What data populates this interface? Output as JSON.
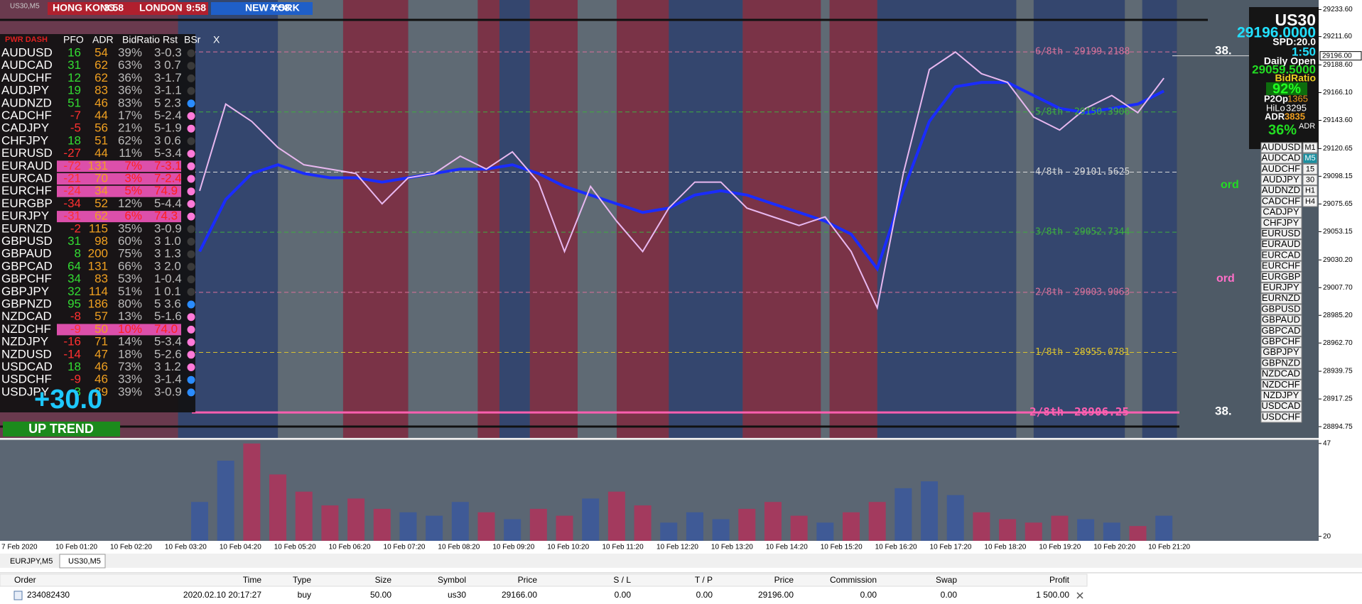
{
  "window": {
    "symbol_label": "US30,M5"
  },
  "sessions": [
    {
      "name": "HONG KONG",
      "time": "3:58"
    },
    {
      "name": "LONDON",
      "time": "9:58"
    },
    {
      "name": "NEW YORK",
      "time": "4:58"
    }
  ],
  "dashboard": {
    "title": "PWR DASH",
    "columns": [
      "PFO",
      "ADR",
      "BidRatio",
      "Rst",
      "BSr",
      "X"
    ],
    "dot_colors": [
      "#3a3a3a",
      "#3a3a3a",
      "#3a3a3a",
      "#3a3a3a",
      "#2a8cff",
      "#ff7ad9",
      "#ff7ad9",
      "#3a3a3a",
      "#ff7ad9",
      "#ff7ad9",
      "#ff7ad9",
      "#ff7ad9",
      "#ff7ad9",
      "#ff7ad9",
      "#3a3a3a",
      "#3a3a3a",
      "#3a3a3a",
      "#3a3a3a",
      "#3a3a3a",
      "#3a3a3a",
      "#2a8cff",
      "#ff7ad9",
      "#ff7ad9",
      "#ff7ad9",
      "#ff7ad9",
      "#ff7ad9",
      "#2a8cff",
      "#2a8cff",
      "#2a8cff"
    ],
    "rows": [
      [
        "AUDUSD",
        16,
        54,
        "39%",
        "3-0.3"
      ],
      [
        "AUDCAD",
        31,
        62,
        "63%",
        "3 0.7"
      ],
      [
        "AUDCHF",
        12,
        62,
        "36%",
        "3-1.7"
      ],
      [
        "AUDJPY",
        19,
        83,
        "36%",
        "3-1.1"
      ],
      [
        "AUDNZD",
        51,
        46,
        "83%",
        "5 2.3"
      ],
      [
        "CADCHF",
        -7,
        44,
        "17%",
        "5-2.4"
      ],
      [
        "CADJPY",
        -5,
        56,
        "21%",
        "5-1.9"
      ],
      [
        "CHFJPY",
        18,
        51,
        "62%",
        "3 0.6"
      ],
      [
        "EURUSD",
        -27,
        44,
        "11%",
        "5-3.4"
      ],
      [
        "EURAUD",
        -72,
        131,
        "7%",
        "7-3.1"
      ],
      [
        "EURCAD",
        -21,
        70,
        "3%",
        "7-2.4"
      ],
      [
        "EURCHF",
        -24,
        34,
        "5%",
        "74.9"
      ],
      [
        "EURGBP",
        -34,
        52,
        "12%",
        "5-4.4"
      ],
      [
        "EURJPY",
        -31,
        62,
        "6%",
        "74.3"
      ],
      [
        "EURNZD",
        -2,
        115,
        "35%",
        "3-0.9"
      ],
      [
        "GBPUSD",
        31,
        98,
        "60%",
        "3 1.0"
      ],
      [
        "GBPAUD",
        8,
        200,
        "75%",
        "3 1.3"
      ],
      [
        "GBPCAD",
        64,
        131,
        "66%",
        "3 2.0"
      ],
      [
        "GBPCHF",
        34,
        83,
        "53%",
        "1-0.4"
      ],
      [
        "GBPJPY",
        32,
        114,
        "51%",
        "1 0.1"
      ],
      [
        "GBPNZD",
        95,
        186,
        "80%",
        "5 3.6"
      ],
      [
        "NZDCAD",
        -8,
        57,
        "13%",
        "5-1.6"
      ],
      [
        "NZDCHF",
        -9,
        50,
        "10%",
        "74.0"
      ],
      [
        "NZDJPY",
        -16,
        71,
        "14%",
        "5-3.4"
      ],
      [
        "NZDUSD",
        -14,
        47,
        "18%",
        "5-2.6"
      ],
      [
        "USDCAD",
        18,
        46,
        "73%",
        "3 1.2"
      ],
      [
        "USDCHF",
        -9,
        46,
        "33%",
        "3-1.4"
      ],
      [
        "USDJPY",
        3,
        29,
        "39%",
        "3-0.9"
      ]
    ]
  },
  "trend": {
    "value": "+30.0",
    "label": "UP TREND"
  },
  "chart": {
    "ylim": [
      28885.6,
      29241.35
    ],
    "yticks": [
      {
        "value": 29233.6,
        "label": "29233.60"
      },
      {
        "value": 29211.6,
        "label": "29211.60"
      },
      {
        "value": 29188.6,
        "label": "29188.60"
      },
      {
        "value": 29166.1,
        "label": "29166.10"
      },
      {
        "value": 29143.6,
        "label": "29143.60"
      },
      {
        "value": 29120.65,
        "label": "29120.65"
      },
      {
        "value": 29098.15,
        "label": "29098.15"
      },
      {
        "value": 29075.65,
        "label": "29075.65"
      },
      {
        "value": 29053.15,
        "label": "29053.15"
      },
      {
        "value": 29030.2,
        "label": "29030.20"
      },
      {
        "value": 29007.7,
        "label": "29007.70"
      },
      {
        "value": 28985.2,
        "label": "28985.20"
      },
      {
        "value": 28962.7,
        "label": "28962.70"
      },
      {
        "value": 28939.75,
        "label": "28939.75"
      },
      {
        "value": 28917.25,
        "label": "28917.25"
      },
      {
        "value": 28894.75,
        "label": "28894.75"
      }
    ],
    "current_price": {
      "value": 29196,
      "label": "29196.00"
    },
    "price": {
      "color": "#e8b8f0",
      "values": [
        29086.3,
        29156.8,
        29142.7,
        29121.6,
        29107.5,
        29104.0,
        29100.4,
        29075.8,
        29096.9,
        29100.4,
        29114.5,
        29104.0,
        29118.0,
        29093.4,
        29037.0,
        29089.9,
        29061.7,
        29037.0,
        29072.3,
        29093.4,
        29093.4,
        29072.3,
        29065.2,
        29058.2,
        29065.2,
        29037.0,
        28991.3,
        29100.4,
        29184.9,
        29199.1,
        29181.5,
        29174.4,
        29146.3,
        29135.7,
        29153.3,
        29163.8,
        29149.8,
        29177.9
      ]
    },
    "ma": {
      "color": "#1a2cff",
      "values": [
        29037.0,
        29079.3,
        29100.4,
        29107.5,
        29100.4,
        29096.9,
        29096.9,
        29093.4,
        29096.9,
        29100.4,
        29104.0,
        29104.0,
        29107.5,
        29100.4,
        29089.9,
        29082.9,
        29075.8,
        29068.8,
        29072.3,
        29082.9,
        29086.4,
        29082.9,
        29075.8,
        29068.8,
        29061.7,
        29051.1,
        29023.0,
        29086.4,
        29142.7,
        29170.9,
        29174.4,
        29174.4,
        29163.8,
        29153.3,
        29149.8,
        29153.3,
        29156.8,
        29167.4
      ]
    },
    "fib_levels": [
      {
        "label": "6/8th",
        "value": 29199.2188,
        "color": "#d9729a"
      },
      {
        "label": "5/8th",
        "value": 29150.3906,
        "color": "#3fae3f"
      },
      {
        "label": "4/8th",
        "value": 29101.5625,
        "color": "#d8d8d8"
      },
      {
        "label": "3/8th",
        "value": 29052.7344,
        "color": "#3fae3f"
      },
      {
        "label": "2/8th",
        "value": 29003.9063,
        "color": "#d9729a"
      },
      {
        "label": "1/8th",
        "value": 28955.0781,
        "color": "#d8c030"
      },
      {
        "label": "2/8th",
        "value": 28906.25,
        "color": "#ff5fb0"
      }
    ],
    "side_labels": [
      "38.",
      "38."
    ],
    "ord_labels": [
      {
        "text": "ord",
        "color": "#22dd22"
      },
      {
        "text": "ord",
        "color": "#ff6fc8"
      }
    ],
    "time_labels": [
      "7 Feb 2020",
      "10 Feb 01:20",
      "10 Feb 02:20",
      "10 Feb 03:20",
      "10 Feb 04:20",
      "10 Feb 05:20",
      "10 Feb 06:20",
      "10 Feb 07:20",
      "10 Feb 08:20",
      "10 Feb 09:20",
      "10 Feb 10:20",
      "10 Feb 11:20",
      "10 Feb 12:20",
      "10 Feb 13:20",
      "10 Feb 14:20",
      "10 Feb 15:20",
      "10 Feb 16:20",
      "10 Feb 17:20",
      "10 Feb 18:20",
      "10 Feb 19:20",
      "10 Feb 20:20",
      "10 Feb 21:20"
    ],
    "volume": {
      "ylim": [
        18.7,
        48.0
      ],
      "yticks": [
        47,
        20
      ],
      "up_color": "#3f5a96",
      "down_color": "#a33a5e",
      "values": [
        30,
        42,
        47,
        38,
        33,
        29,
        31,
        28,
        27,
        26,
        30,
        27,
        25,
        28,
        26,
        31,
        33,
        29,
        24,
        27,
        25,
        28,
        30,
        26,
        24,
        27,
        30,
        34,
        36,
        32,
        27,
        25,
        24,
        26,
        25,
        24,
        23,
        26
      ]
    }
  },
  "info_panel": {
    "symbol": "US30",
    "bid": "29196.0000",
    "spread": "SPD:20.0",
    "timer": "1:50",
    "daily_open_label": "Daily Open",
    "daily_open": "29059.5000",
    "bid_ratio_label": "BidRatio",
    "bid_ratio": "92%",
    "p2op_label": "P2Op",
    "p2op": "1365",
    "hilo_label": "HiLo",
    "hilo": "3295",
    "adr_label": "ADR",
    "adr": "3835",
    "adr_pct_label": "ADR",
    "adr_pct": "36%"
  },
  "symbol_list": [
    "AUDUSD",
    "AUDCAD",
    "AUDCHF",
    "AUDJPY",
    "AUDNZD",
    "CADCHF",
    "CADJPY",
    "CHFJPY",
    "EURUSD",
    "EURAUD",
    "EURCAD",
    "EURCHF",
    "EURGBP",
    "EURJPY",
    "EURNZD",
    "GBPUSD",
    "GBPAUD",
    "GBPCAD",
    "GBPCHF",
    "GBPJPY",
    "GBPNZD",
    "NZDCAD",
    "NZDCHF",
    "NZDJPY",
    "USDCAD",
    "USDCHF"
  ],
  "timeframes": [
    "M1",
    "M5",
    "15",
    "30",
    "H1",
    "H4"
  ],
  "tabs": [
    "EURJPY,M5",
    "US30,M5"
  ],
  "trades": {
    "headers": [
      "Order",
      "Time",
      "Type",
      "Size",
      "Symbol",
      "Price",
      "S / L",
      "T / P",
      "Price",
      "Commission",
      "Swap",
      "Profit"
    ],
    "rows": [
      [
        "234082430",
        "2020.02.10 20:17:27",
        "buy",
        "50.00",
        "us30",
        "29166.00",
        "0.00",
        "0.00",
        "29196.00",
        "0.00",
        "0.00",
        "1 500.00"
      ]
    ]
  }
}
